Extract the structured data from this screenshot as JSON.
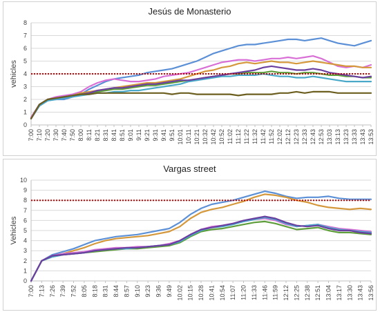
{
  "chart_data": [
    {
      "type": "line",
      "title": "Jesús de Monasterio",
      "xlabel": "",
      "ylabel": "vehicles",
      "ylim": [
        0,
        8
      ],
      "yticks": [
        0,
        1,
        2,
        3,
        4,
        5,
        6,
        7,
        8
      ],
      "grid": true,
      "legend": "none",
      "x": [
        "7:00",
        "7:10",
        "7:20",
        "7:30",
        "7:40",
        "7:50",
        "8:00",
        "8:11",
        "8:21",
        "8:31",
        "8:41",
        "8:51",
        "9:01",
        "9:11",
        "9:21",
        "9:31",
        "9:41",
        "9:51",
        "10:01",
        "10:11",
        "10:21",
        "10:32",
        "10:42",
        "10:52",
        "11:02",
        "11:12",
        "11:22",
        "11:32",
        "11:42",
        "11:52",
        "12:02",
        "12:12",
        "12:23",
        "12:33",
        "12:43",
        "12:53",
        "13:03",
        "13:13",
        "13:23",
        "13:33",
        "13:43",
        "13:53"
      ],
      "threshold": {
        "value": 4,
        "color": "#c00000"
      },
      "series": [
        {
          "color": "#5b8fd6",
          "values": [
            0.5,
            1.5,
            1.9,
            2.0,
            2.0,
            2.2,
            2.4,
            2.8,
            3.1,
            3.4,
            3.6,
            3.7,
            3.8,
            3.9,
            4.1,
            4.2,
            4.3,
            4.4,
            4.6,
            4.8,
            5.0,
            5.3,
            5.6,
            5.8,
            6.0,
            6.2,
            6.3,
            6.3,
            6.4,
            6.5,
            6.6,
            6.7,
            6.7,
            6.6,
            6.7,
            6.8,
            6.6,
            6.4,
            6.3,
            6.2,
            6.4,
            6.6
          ]
        },
        {
          "color": "#d86fd6",
          "values": [
            0.6,
            1.6,
            2.0,
            2.2,
            2.3,
            2.4,
            2.6,
            3.0,
            3.3,
            3.5,
            3.6,
            3.5,
            3.4,
            3.4,
            3.5,
            3.6,
            3.8,
            3.9,
            4.0,
            4.1,
            4.3,
            4.5,
            4.7,
            4.9,
            5.0,
            5.1,
            5.1,
            5.0,
            5.1,
            5.2,
            5.2,
            5.3,
            5.2,
            5.3,
            5.4,
            5.2,
            4.9,
            4.6,
            4.5,
            4.6,
            4.5,
            4.7
          ]
        },
        {
          "color": "#d4983a",
          "values": [
            0.5,
            1.6,
            2.0,
            2.1,
            2.2,
            2.3,
            2.5,
            2.6,
            2.7,
            2.8,
            2.9,
            3.0,
            3.1,
            3.2,
            3.3,
            3.3,
            3.4,
            3.5,
            3.6,
            3.8,
            4.0,
            4.2,
            4.3,
            4.5,
            4.6,
            4.8,
            4.9,
            4.8,
            4.9,
            5.0,
            4.9,
            4.9,
            4.8,
            4.9,
            5.0,
            4.9,
            4.8,
            4.7,
            4.6,
            4.6,
            4.5,
            4.5
          ]
        },
        {
          "color": "#5e9e3a",
          "values": [
            0.5,
            1.6,
            2.0,
            2.1,
            2.2,
            2.3,
            2.4,
            2.5,
            2.6,
            2.7,
            2.8,
            2.8,
            2.9,
            3.0,
            3.1,
            3.1,
            3.2,
            3.3,
            3.4,
            3.5,
            3.6,
            3.7,
            3.8,
            3.9,
            4.0,
            4.0,
            4.1,
            4.1,
            4.1,
            4.2,
            4.1,
            4.1,
            4.0,
            4.1,
            4.1,
            4.0,
            3.9,
            3.9,
            3.8,
            3.8,
            3.7,
            3.7
          ]
        },
        {
          "color": "#4aa8c9",
          "values": [
            0.5,
            1.5,
            1.9,
            2.0,
            2.1,
            2.2,
            2.3,
            2.4,
            2.5,
            2.5,
            2.6,
            2.6,
            2.7,
            2.7,
            2.8,
            2.9,
            3.0,
            3.1,
            3.2,
            3.4,
            3.5,
            3.6,
            3.7,
            3.8,
            3.8,
            3.9,
            3.9,
            3.9,
            4.0,
            3.9,
            3.8,
            3.8,
            3.7,
            3.7,
            3.8,
            3.7,
            3.6,
            3.5,
            3.4,
            3.4,
            3.4,
            3.4
          ]
        },
        {
          "color": "#6b3fa0",
          "values": [
            0.5,
            1.6,
            2.0,
            2.1,
            2.2,
            2.3,
            2.4,
            2.5,
            2.7,
            2.8,
            2.9,
            2.9,
            3.0,
            3.1,
            3.2,
            3.2,
            3.3,
            3.4,
            3.5,
            3.5,
            3.6,
            3.7,
            3.8,
            3.9,
            4.0,
            4.1,
            4.2,
            4.3,
            4.5,
            4.6,
            4.5,
            4.4,
            4.3,
            4.3,
            4.4,
            4.3,
            4.1,
            4.0,
            3.9,
            3.8,
            3.7,
            3.8
          ]
        },
        {
          "color": "#6b5e1e",
          "values": [
            0.5,
            1.6,
            2.0,
            2.1,
            2.2,
            2.3,
            2.4,
            2.4,
            2.5,
            2.5,
            2.5,
            2.5,
            2.5,
            2.5,
            2.5,
            2.5,
            2.5,
            2.4,
            2.5,
            2.5,
            2.4,
            2.4,
            2.4,
            2.4,
            2.4,
            2.3,
            2.4,
            2.4,
            2.4,
            2.4,
            2.5,
            2.5,
            2.6,
            2.5,
            2.6,
            2.6,
            2.6,
            2.5,
            2.5,
            2.5,
            2.5,
            2.5
          ]
        }
      ]
    },
    {
      "type": "line",
      "title": "Vargas street",
      "xlabel": "",
      "ylabel": "Vehicles",
      "ylim": [
        0,
        10
      ],
      "yticks": [
        0,
        1,
        2,
        3,
        4,
        5,
        6,
        7,
        8,
        9,
        10
      ],
      "grid": true,
      "legend": "none",
      "x": [
        "7:00",
        "7:13",
        "7:26",
        "7:39",
        "7:52",
        "8:05",
        "8:18",
        "8:31",
        "8:44",
        "8:57",
        "9:10",
        "9:23",
        "9:36",
        "9:49",
        "10:02",
        "10:15",
        "10:28",
        "10:41",
        "10:54",
        "11:07",
        "11:20",
        "11:33",
        "11:46",
        "11:59",
        "12:12",
        "12:25",
        "12:38",
        "12:51",
        "13:04",
        "13:17",
        "13:30",
        "13:43",
        "13:56"
      ],
      "threshold": {
        "value": 8,
        "color": "#c00000"
      },
      "series": [
        {
          "color": "#5b8fd6",
          "values": [
            0,
            2.0,
            2.6,
            2.9,
            3.2,
            3.6,
            4.0,
            4.2,
            4.4,
            4.5,
            4.6,
            4.8,
            5.0,
            5.2,
            5.8,
            6.6,
            7.2,
            7.6,
            7.8,
            8.0,
            8.3,
            8.6,
            8.9,
            8.7,
            8.4,
            8.2,
            8.3,
            8.3,
            8.4,
            8.2,
            8.1,
            8.1,
            8.1
          ]
        },
        {
          "color": "#d4983a",
          "values": [
            0,
            2.0,
            2.5,
            2.7,
            3.0,
            3.3,
            3.7,
            4.0,
            4.2,
            4.3,
            4.4,
            4.5,
            4.7,
            4.9,
            5.4,
            6.2,
            6.8,
            7.1,
            7.3,
            7.6,
            7.9,
            8.3,
            8.6,
            8.5,
            8.3,
            8.0,
            7.8,
            7.5,
            7.3,
            7.2,
            7.1,
            7.2,
            7.1
          ]
        },
        {
          "color": "#d86fd6",
          "values": [
            0,
            2.0,
            2.5,
            2.7,
            2.8,
            2.9,
            3.1,
            3.2,
            3.3,
            3.3,
            3.4,
            3.4,
            3.5,
            3.7,
            4.0,
            4.6,
            5.1,
            5.4,
            5.5,
            5.7,
            5.9,
            6.1,
            6.2,
            6.0,
            5.6,
            5.4,
            5.5,
            5.6,
            5.4,
            5.2,
            5.1,
            5.0,
            4.9
          ]
        },
        {
          "color": "#5e9e3a",
          "values": [
            0,
            2.0,
            2.4,
            2.6,
            2.7,
            2.8,
            2.9,
            3.0,
            3.1,
            3.2,
            3.2,
            3.3,
            3.4,
            3.5,
            3.8,
            4.4,
            4.9,
            5.1,
            5.2,
            5.4,
            5.6,
            5.8,
            5.9,
            5.7,
            5.4,
            5.1,
            5.2,
            5.3,
            5.0,
            4.8,
            4.8,
            4.7,
            4.6
          ]
        },
        {
          "color": "#4aa8c9",
          "values": [
            0,
            2.0,
            2.4,
            2.6,
            2.7,
            2.8,
            3.0,
            3.1,
            3.2,
            3.2,
            3.3,
            3.4,
            3.5,
            3.6,
            3.9,
            4.5,
            5.0,
            5.3,
            5.4,
            5.6,
            5.9,
            6.1,
            6.3,
            6.1,
            5.7,
            5.4,
            5.5,
            5.6,
            5.3,
            5.1,
            5.0,
            4.9,
            4.8
          ]
        },
        {
          "color": "#6b3fa0",
          "values": [
            0,
            2.0,
            2.5,
            2.6,
            2.7,
            2.8,
            3.0,
            3.1,
            3.2,
            3.3,
            3.3,
            3.4,
            3.5,
            3.6,
            4.0,
            4.6,
            5.1,
            5.3,
            5.5,
            5.7,
            6.0,
            6.2,
            6.4,
            6.2,
            5.8,
            5.5,
            5.4,
            5.5,
            5.2,
            5.0,
            5.0,
            4.8,
            4.7
          ]
        }
      ]
    }
  ]
}
